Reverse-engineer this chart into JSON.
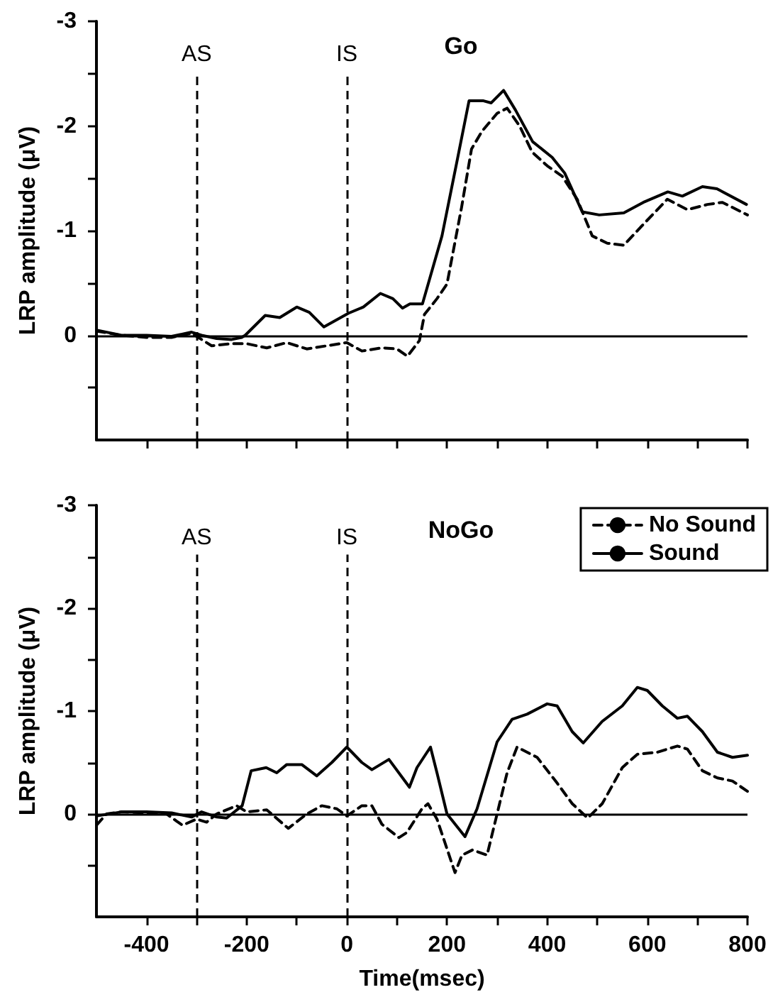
{
  "chart_data": [
    {
      "type": "line",
      "title": "Go",
      "ylabel": "LRP amplitude (μV)",
      "xlim": [
        -500,
        800
      ],
      "ylim": [
        1,
        -3
      ],
      "xticks": [
        {
          "value": -400,
          "label": null
        },
        {
          "value": -300,
          "label": null
        },
        {
          "value": -200,
          "label": null
        },
        {
          "value": -100,
          "label": null
        },
        {
          "value": 0,
          "label": null
        },
        {
          "value": 100,
          "label": null
        },
        {
          "value": 200,
          "label": null
        },
        {
          "value": 300,
          "label": null
        },
        {
          "value": 400,
          "label": null
        },
        {
          "value": 500,
          "label": null
        },
        {
          "value": 600,
          "label": null
        },
        {
          "value": 700,
          "label": null
        },
        {
          "value": 800,
          "label": null
        }
      ],
      "yticks": [
        -3,
        {
          "value": -2.5,
          "label": null
        },
        -2,
        {
          "value": -1.5,
          "label": null
        },
        -1,
        {
          "value": -0.5,
          "label": null
        },
        0,
        {
          "value": 0.5,
          "label": null
        }
      ],
      "tick_labels": "y",
      "grid": false,
      "legend": false,
      "marker": "none",
      "ref_lines": [
        {
          "axis": "x",
          "value": -300,
          "label": "AS",
          "line_style": "dashed",
          "color": "#000000"
        },
        {
          "axis": "x",
          "value": 0,
          "label": "IS",
          "line_style": "dashed",
          "color": "#000000"
        },
        {
          "axis": "y",
          "value": 0,
          "line_style": "solid",
          "color": "#000000"
        }
      ],
      "series": [
        {
          "color": "#000000",
          "line_style": "dashed",
          "x": [
            -500,
            -450,
            -400,
            -350,
            -310,
            -270,
            -230,
            -200,
            -160,
            -120,
            -80,
            -40,
            0,
            30,
            70,
            100,
            121,
            145,
            155,
            180,
            200,
            229,
            249,
            270,
            300,
            320,
            345,
            370,
            400,
            430,
            460,
            490,
            520,
            553,
            590,
            640,
            680,
            720,
            750,
            800
          ],
          "values": [
            -0.04,
            0,
            0.02,
            0.02,
            -0.02,
            0.1,
            0.08,
            0.08,
            0.12,
            0.07,
            0.13,
            0.1,
            0.07,
            0.15,
            0.12,
            0.13,
            0.2,
            0.05,
            -0.2,
            -0.35,
            -0.49,
            -1.22,
            -1.78,
            -1.95,
            -2.12,
            -2.17,
            -2.0,
            -1.75,
            -1.62,
            -1.52,
            -1.3,
            -0.95,
            -0.88,
            -0.86,
            -1.05,
            -1.3,
            -1.2,
            -1.25,
            -1.27,
            -1.15
          ]
        },
        {
          "color": "#000000",
          "line_style": "solid",
          "x": [
            -500,
            -450,
            -400,
            -350,
            -310,
            -290,
            -260,
            -230,
            -210,
            -203,
            -163,
            -134,
            -100,
            -75,
            -46,
            3,
            33,
            67,
            92,
            111,
            126,
            151,
            190,
            219,
            244,
            273,
            288,
            313,
            337,
            371,
            410,
            435,
            470,
            504,
            553,
            592,
            641,
            670,
            710,
            739,
            798
          ],
          "values": [
            -0.05,
            0,
            0,
            0.01,
            -0.03,
            0,
            0.03,
            0.04,
            0.02,
            0,
            -0.19,
            -0.17,
            -0.27,
            -0.22,
            -0.08,
            -0.21,
            -0.27,
            -0.4,
            -0.35,
            -0.26,
            -0.3,
            -0.3,
            -0.95,
            -1.64,
            -2.24,
            -2.24,
            -2.22,
            -2.34,
            -2.15,
            -1.85,
            -1.7,
            -1.55,
            -1.18,
            -1.15,
            -1.17,
            -1.27,
            -1.37,
            -1.33,
            -1.42,
            -1.4,
            -1.25
          ]
        }
      ]
    },
    {
      "type": "line",
      "title": "NoGo",
      "xlabel": "Time(msec)",
      "ylabel": "LRP amplitude (μV)",
      "xlim": [
        -500,
        800
      ],
      "ylim": [
        1,
        -3
      ],
      "xticks": [
        -400,
        {
          "value": -300,
          "label": null
        },
        -200,
        {
          "value": -100,
          "label": null
        },
        0,
        {
          "value": 100,
          "label": null
        },
        200,
        {
          "value": 300,
          "label": null
        },
        400,
        {
          "value": 500,
          "label": null
        },
        600,
        {
          "value": 700,
          "label": null
        },
        800
      ],
      "yticks": [
        -3,
        {
          "value": -2.5,
          "label": null
        },
        -2,
        {
          "value": -1.5,
          "label": null
        },
        -1,
        {
          "value": -0.5,
          "label": null
        },
        0,
        {
          "value": 0.5,
          "label": null
        }
      ],
      "grid": false,
      "legend": "top right",
      "marker": "none",
      "ref_lines": [
        {
          "axis": "x",
          "value": -300,
          "label": "AS",
          "line_style": "dashed",
          "color": "#000000"
        },
        {
          "axis": "x",
          "value": 0,
          "label": "IS",
          "line_style": "dashed",
          "color": "#000000"
        },
        {
          "axis": "y",
          "value": 0,
          "line_style": "solid",
          "color": "#000000"
        }
      ],
      "series": [
        {
          "name": "No Sound",
          "color": "#000000",
          "line_style": "dashed",
          "x": [
            -500,
            -480,
            -450,
            -400,
            -360,
            -340,
            -328,
            -300,
            -280,
            -260,
            -220,
            -200,
            -160,
            -117,
            -80,
            -50,
            -20,
            0,
            30,
            50,
            70,
            104,
            120,
            150,
            162,
            180,
            216,
            230,
            251,
            280,
            300,
            320,
            340,
            380,
            420,
            450,
            481,
            510,
            550,
            580,
            620,
            660,
            680,
            710,
            740,
            770,
            800
          ],
          "values": [
            0.11,
            0,
            -0.02,
            -0.01,
            0,
            0.07,
            0.11,
            0.05,
            0.08,
            0,
            -0.08,
            -0.02,
            -0.04,
            0.14,
            0,
            -0.08,
            -0.05,
            0.02,
            -0.08,
            -0.08,
            0.1,
            0.23,
            0.18,
            -0.05,
            -0.1,
            0.05,
            0.57,
            0.4,
            0.35,
            0.4,
            0,
            -0.4,
            -0.65,
            -0.55,
            -0.3,
            -0.1,
            0.04,
            -0.1,
            -0.45,
            -0.58,
            -0.6,
            -0.66,
            -0.63,
            -0.42,
            -0.35,
            -0.32,
            -0.22
          ]
        },
        {
          "name": "Sound",
          "color": "#000000",
          "line_style": "solid",
          "x": [
            -500,
            -450,
            -400,
            -350,
            -310,
            -290,
            -260,
            -240,
            -209,
            -191,
            -161,
            -140,
            -120,
            -90,
            -60,
            -30,
            0,
            30,
            50,
            84,
            125,
            140,
            167,
            180,
            200,
            236,
            260,
            300,
            330,
            360,
            400,
            420,
            450,
            472,
            510,
            550,
            580,
            600,
            630,
            660,
            680,
            710,
            740,
            770,
            800
          ],
          "values": [
            0.02,
            -0.02,
            -0.02,
            -0.01,
            0.03,
            -0.02,
            0.03,
            0.04,
            -0.08,
            -0.42,
            -0.45,
            -0.4,
            -0.48,
            -0.48,
            -0.37,
            -0.5,
            -0.65,
            -0.5,
            -0.43,
            -0.53,
            -0.26,
            -0.45,
            -0.65,
            -0.4,
            0,
            0.22,
            -0.05,
            -0.7,
            -0.92,
            -0.97,
            -1.07,
            -1.05,
            -0.8,
            -0.69,
            -0.9,
            -1.05,
            -1.23,
            -1.2,
            -1.05,
            -0.93,
            -0.95,
            -0.8,
            -0.6,
            -0.55,
            -0.57
          ]
        }
      ]
    }
  ]
}
